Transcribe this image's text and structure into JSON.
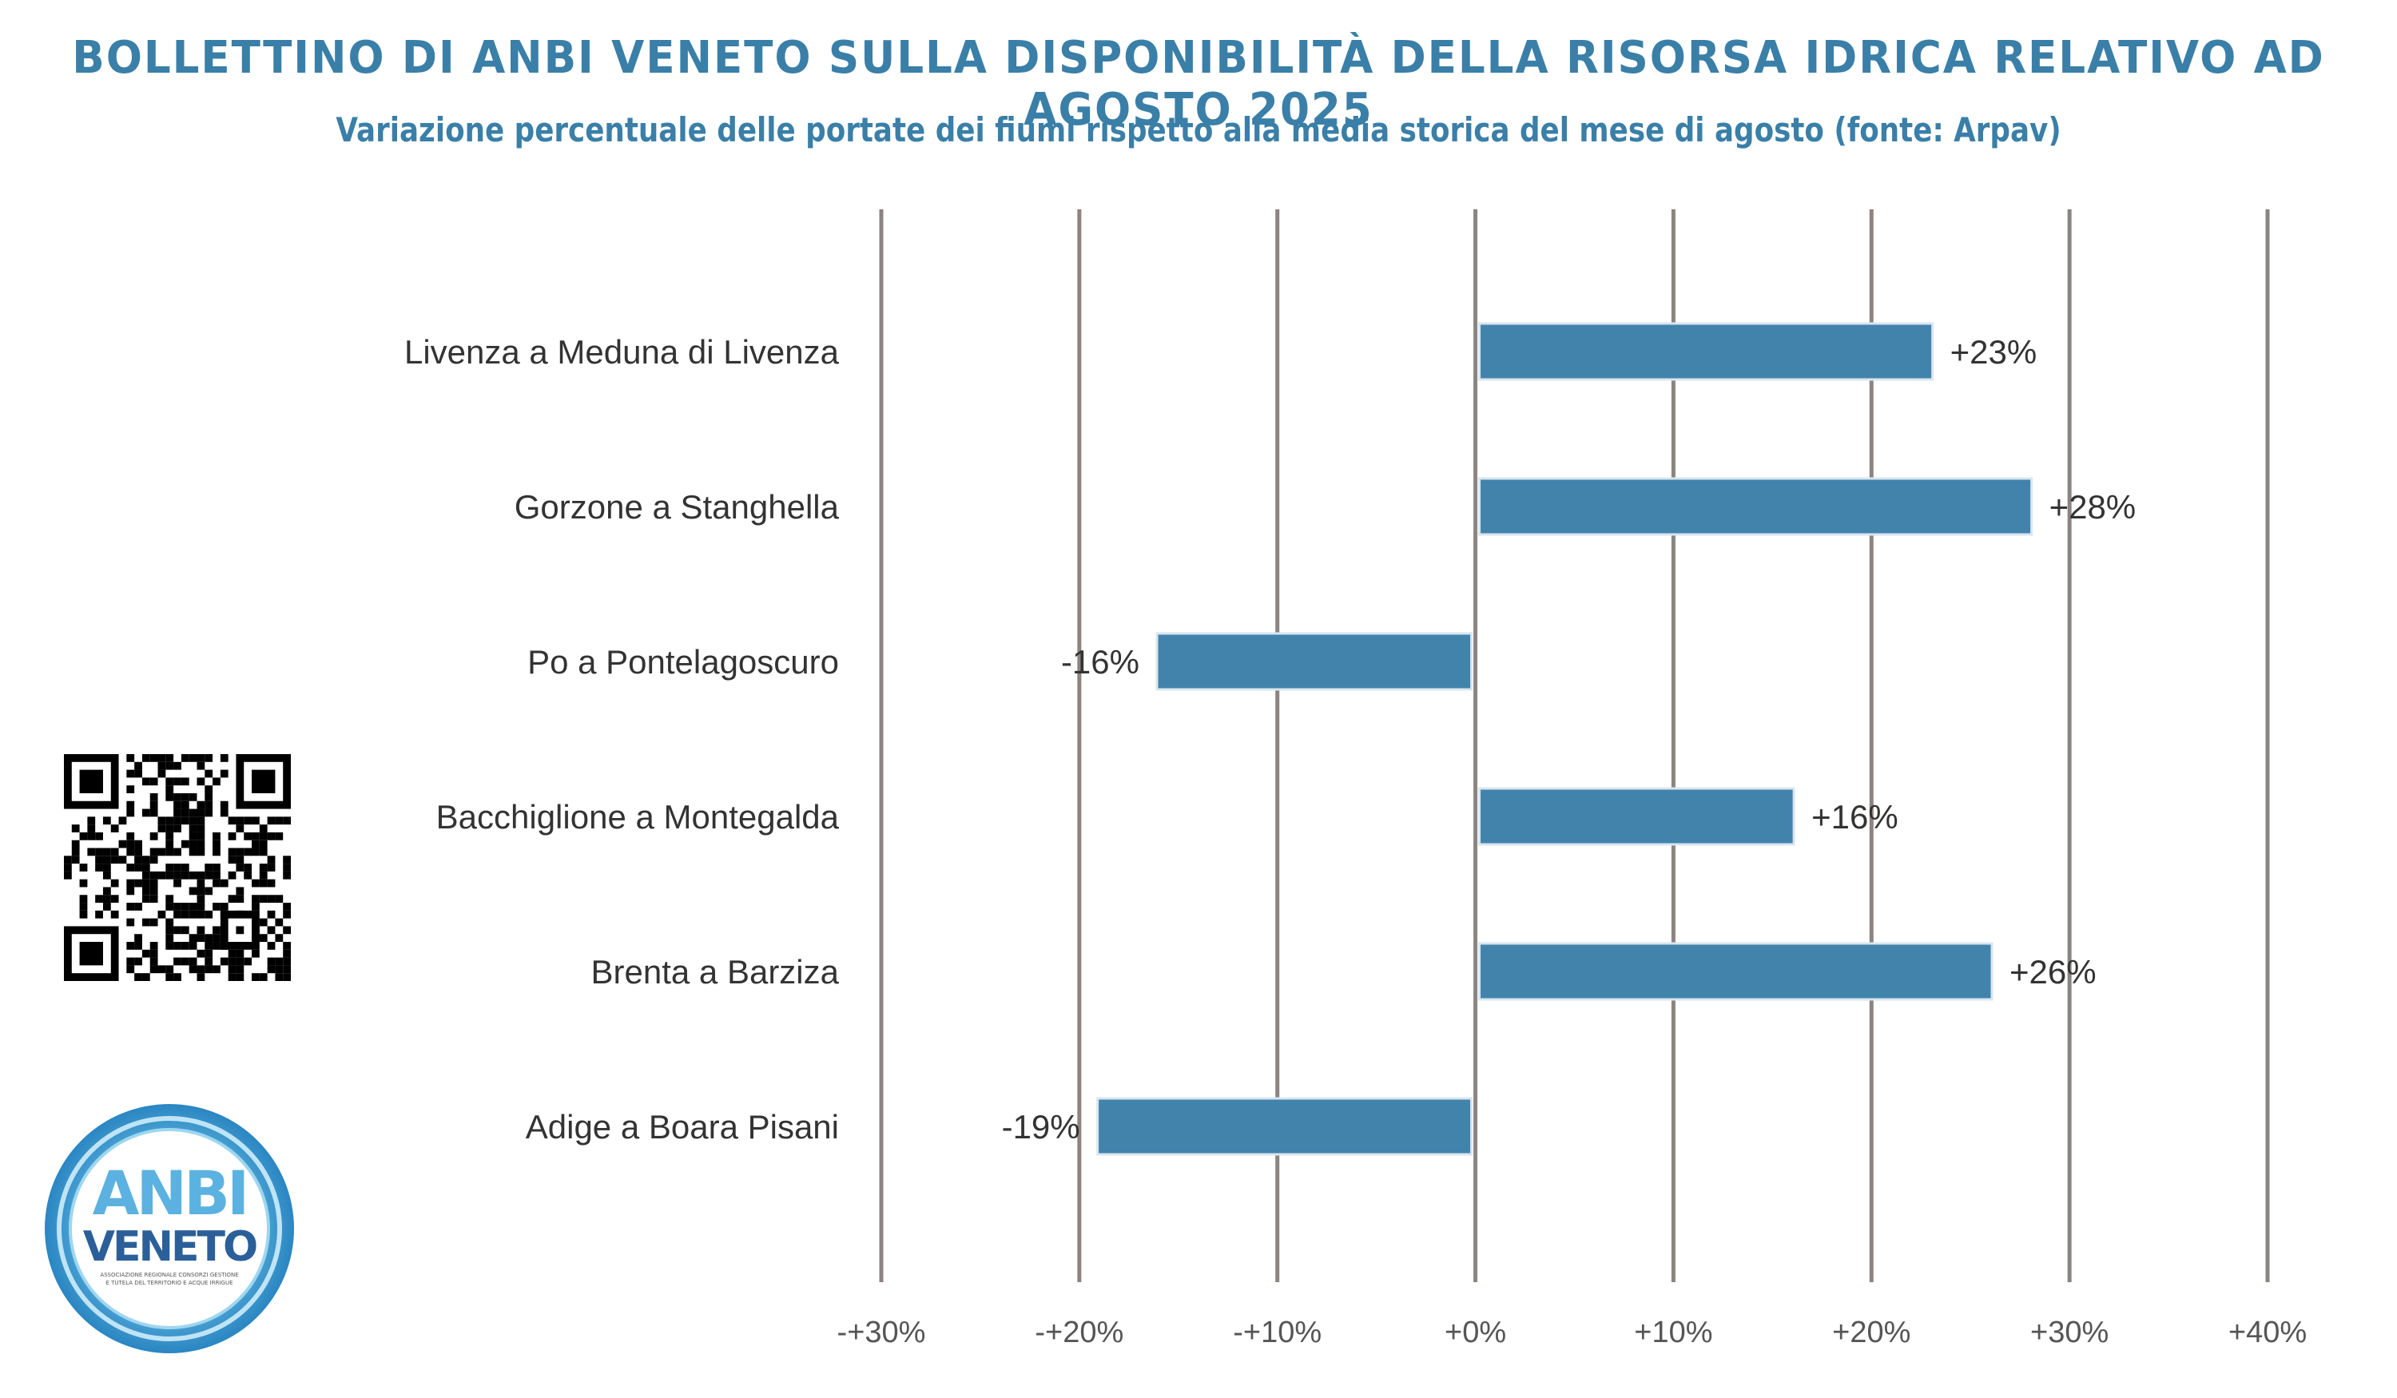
{
  "header": {
    "title": "BOLLETTINO DI ANBI VENETO SULLA DISPONIBILITÀ DELLA RISORSA IDRICA RELATIVO AD AGOSTO 2025",
    "subtitle": "Variazione percentuale delle portate dei fiumi rispetto alla media storica del mese di agosto (fonte: Arpav)"
  },
  "chart_data": {
    "type": "bar",
    "orientation": "horizontal",
    "categories": [
      "Livenza a Meduna di Livenza",
      "Gorzone a Stanghella",
      "Po a Pontelagoscuro",
      "Bacchiglione a Montegalda",
      "Brenta a Barziza",
      "Adige a Boara Pisani"
    ],
    "values": [
      23,
      28,
      -16,
      16,
      26,
      -19
    ],
    "data_labels": [
      "+23%",
      "+28%",
      "-16%",
      "+16%",
      "+26%",
      "-19%"
    ],
    "xlim": [
      -30,
      40
    ],
    "x_ticks": [
      -30,
      -20,
      -10,
      0,
      10,
      20,
      30,
      40
    ],
    "x_tick_labels": [
      "-+30%",
      "-+20%",
      "-+10%",
      "+0%",
      "+10%",
      "+20%",
      "+30%",
      "+40%"
    ],
    "grid": "vertical",
    "bar_color": "#4283ac",
    "grid_color": "#8c8480"
  },
  "logo": {
    "text": "ANBI VENETO",
    "caption": "ASSOCIAZIONE REGIONALE CONSORZI GESTIONE E TUTELA DEL TERRITORIO E ACQUE IRRIGUE"
  },
  "icons": {
    "qr": "qr-code-icon",
    "logo": "anbi-veneto-logo"
  }
}
